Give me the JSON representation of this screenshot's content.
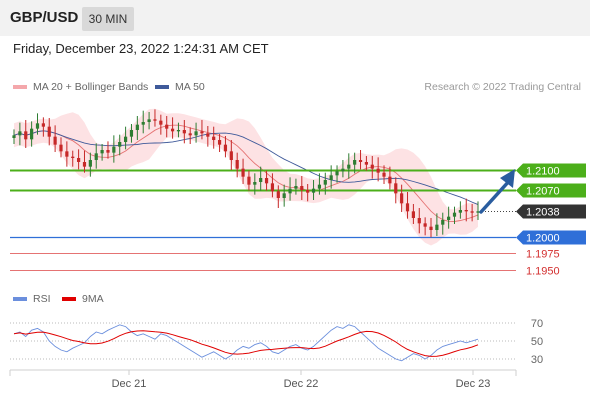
{
  "header": {
    "pair": "GBP/USD",
    "timeframe": "30 MIN"
  },
  "datetime": "Friday, December 23, 2022 1:24:31 AM CET",
  "legend": {
    "bollinger": "MA 20 + Bollinger Bands",
    "ma50": "MA 50",
    "copyright": "Research © 2022 Trading Central",
    "rsi": "RSI",
    "rsi_ma": "9MA"
  },
  "colors": {
    "candle_up": "#2e7d32",
    "candle_down": "#c62828",
    "bollinger_fill": "#fde2e4",
    "ma20": "#e57373",
    "ma50": "#3f5a9a",
    "resistance": "#4caf1a",
    "pivot": "#333333",
    "support_main": "#2f6fd8",
    "support_minor": "#e57373",
    "arrow": "#2a5d9f",
    "rsi": "#6b8fdd",
    "rsi_ma": "#e00000"
  },
  "icons": {
    "forecast_arrow": "up-arrow-icon"
  },
  "chart_data": [
    {
      "type": "candlestick",
      "x_ticks": [
        "Dec 21",
        "Dec 22",
        "Dec 23"
      ],
      "y_range": [
        1.1935,
        1.2205
      ],
      "price_close_approx": [
        1.2152,
        1.2158,
        1.2146,
        1.2162,
        1.217,
        1.2165,
        1.215,
        1.2138,
        1.2128,
        1.212,
        1.2118,
        1.2112,
        1.2105,
        1.2115,
        1.2125,
        1.213,
        1.2126,
        1.2135,
        1.2142,
        1.215,
        1.216,
        1.2168,
        1.2172,
        1.2176,
        1.2174,
        1.2168,
        1.2162,
        1.2158,
        1.216,
        1.2155,
        1.2152,
        1.2158,
        1.2155,
        1.215,
        1.2145,
        1.2138,
        1.2128,
        1.2115,
        1.2102,
        1.209,
        1.2078,
        1.2082,
        1.2088,
        1.208,
        1.2068,
        1.2058,
        1.2065,
        1.2072,
        1.2076,
        1.207,
        1.2066,
        1.2072,
        1.2078,
        1.2085,
        1.2092,
        1.2098,
        1.2102,
        1.2108,
        1.2115,
        1.2112,
        1.2108,
        1.2102,
        1.2096,
        1.209,
        1.208,
        1.2065,
        1.205,
        1.2038,
        1.2028,
        1.202,
        1.2015,
        1.201,
        1.2018,
        1.2025,
        1.203,
        1.2036,
        1.204,
        1.2038,
        1.2036,
        1.2038
      ],
      "levels": [
        {
          "value": "1.2100",
          "role": "resistance"
        },
        {
          "value": "1.2070",
          "role": "resistance"
        },
        {
          "value": "1.2038",
          "role": "pivot"
        },
        {
          "value": "1.2000",
          "role": "support"
        },
        {
          "value": "1.1975",
          "role": "support"
        },
        {
          "value": "1.1950",
          "role": "support"
        }
      ]
    },
    {
      "type": "line",
      "name": "RSI",
      "y_ticks": [
        "70",
        "50",
        "30"
      ],
      "y_range": [
        20,
        80
      ],
      "rsi_approx": [
        58,
        60,
        55,
        62,
        64,
        60,
        50,
        44,
        40,
        38,
        42,
        45,
        48,
        55,
        60,
        58,
        62,
        65,
        68,
        66,
        60,
        56,
        58,
        55,
        52,
        58,
        56,
        52,
        48,
        44,
        40,
        36,
        32,
        35,
        38,
        34,
        30,
        34,
        40,
        44,
        42,
        46,
        48,
        44,
        38,
        36,
        40,
        44,
        46,
        42,
        40,
        44,
        50,
        56,
        62,
        66,
        64,
        68,
        66,
        60,
        54,
        48,
        42,
        38,
        34,
        30,
        28,
        32,
        36,
        34,
        30,
        34,
        40,
        44,
        46,
        48,
        50,
        48,
        50,
        52
      ]
    }
  ]
}
